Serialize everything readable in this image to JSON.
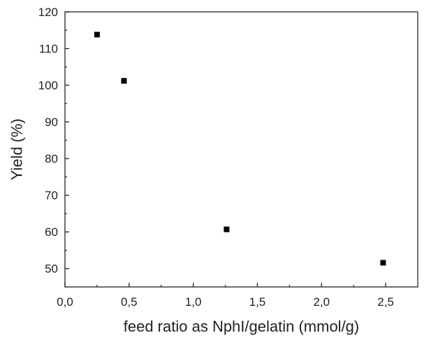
{
  "chart_data": {
    "type": "scatter",
    "xlabel": "feed ratio as NphI/gelatin (mmol/g)",
    "ylabel": "Yield (%)",
    "xlim": [
      0,
      2.75
    ],
    "ylim": [
      45,
      120
    ],
    "x_ticks": [
      "0,0",
      "0,5",
      "1,0",
      "1,5",
      "2,0",
      "2,5"
    ],
    "x_tick_values": [
      0,
      0.5,
      1.0,
      1.5,
      2.0,
      2.5
    ],
    "y_ticks": [
      "50",
      "60",
      "70",
      "80",
      "90",
      "100",
      "110",
      "120"
    ],
    "y_tick_values": [
      50,
      60,
      70,
      80,
      90,
      100,
      110,
      120
    ],
    "grid": false,
    "marker": "square",
    "marker_color": "#000000",
    "series": [
      {
        "x": [
          0.25,
          0.46,
          1.26,
          2.48
        ],
        "y": [
          113.8,
          101.2,
          60.7,
          51.6
        ]
      }
    ]
  }
}
